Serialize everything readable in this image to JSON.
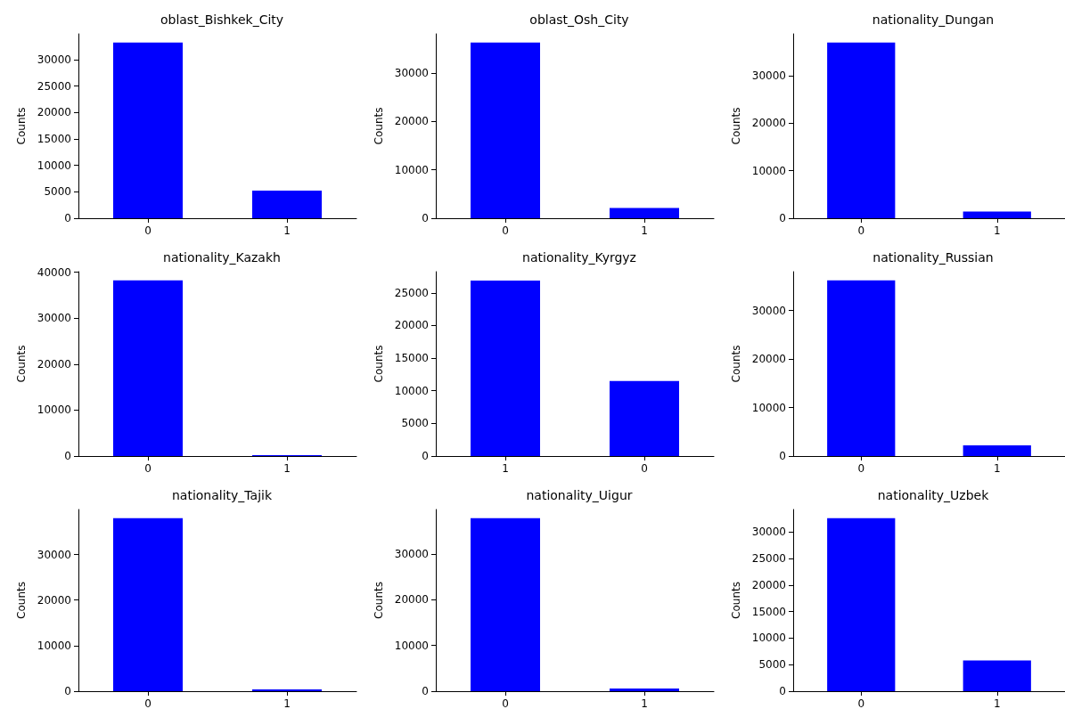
{
  "chart_data": [
    {
      "type": "bar",
      "title": "oblast_Bishkek_City",
      "ylabel": "Counts",
      "categories": [
        "0",
        "1"
      ],
      "values": [
        33200,
        5200
      ],
      "color": "#0000ff",
      "ylim": [
        0,
        34860
      ],
      "yticks": [
        0,
        5000,
        10000,
        15000,
        20000,
        25000,
        30000
      ],
      "grid": false
    },
    {
      "type": "bar",
      "title": "oblast_Osh_City",
      "ylabel": "Counts",
      "categories": [
        "0",
        "1"
      ],
      "values": [
        36300,
        2100
      ],
      "color": "#0000ff",
      "ylim": [
        0,
        38100
      ],
      "yticks": [
        0,
        10000,
        20000,
        30000
      ],
      "grid": false
    },
    {
      "type": "bar",
      "title": "nationality_Dungan",
      "ylabel": "Counts",
      "categories": [
        "0",
        "1"
      ],
      "values": [
        37000,
        1400
      ],
      "color": "#0000ff",
      "ylim": [
        0,
        38850
      ],
      "yticks": [
        0,
        10000,
        20000,
        30000
      ],
      "grid": false
    },
    {
      "type": "bar",
      "title": "nationality_Kazakh",
      "ylabel": "Counts",
      "categories": [
        "0",
        "1"
      ],
      "values": [
        38200,
        200
      ],
      "color": "#0000ff",
      "ylim": [
        0,
        40100
      ],
      "yticks": [
        0,
        10000,
        20000,
        30000,
        40000
      ],
      "grid": false
    },
    {
      "type": "bar",
      "title": "nationality_Kyrgyz",
      "ylabel": "Counts",
      "categories": [
        "1",
        "0"
      ],
      "values": [
        26900,
        11500
      ],
      "color": "#0000ff",
      "ylim": [
        0,
        28250
      ],
      "yticks": [
        0,
        5000,
        10000,
        15000,
        20000,
        25000
      ],
      "grid": false
    },
    {
      "type": "bar",
      "title": "nationality_Russian",
      "ylabel": "Counts",
      "categories": [
        "0",
        "1"
      ],
      "values": [
        36200,
        2200
      ],
      "color": "#0000ff",
      "ylim": [
        0,
        38000
      ],
      "yticks": [
        0,
        10000,
        20000,
        30000
      ],
      "grid": false
    },
    {
      "type": "bar",
      "title": "nationality_Tajik",
      "ylabel": "Counts",
      "categories": [
        "0",
        "1"
      ],
      "values": [
        38000,
        400
      ],
      "color": "#0000ff",
      "ylim": [
        0,
        39900
      ],
      "yticks": [
        0,
        10000,
        20000,
        30000
      ],
      "grid": false
    },
    {
      "type": "bar",
      "title": "nationality_Uigur",
      "ylabel": "Counts",
      "categories": [
        "0",
        "1"
      ],
      "values": [
        37800,
        600
      ],
      "color": "#0000ff",
      "ylim": [
        0,
        39700
      ],
      "yticks": [
        0,
        10000,
        20000,
        30000
      ],
      "grid": false
    },
    {
      "type": "bar",
      "title": "nationality_Uzbek",
      "ylabel": "Counts",
      "categories": [
        "0",
        "1"
      ],
      "values": [
        32600,
        5800
      ],
      "color": "#0000ff",
      "ylim": [
        0,
        34230
      ],
      "yticks": [
        0,
        5000,
        10000,
        15000,
        20000,
        25000,
        30000
      ],
      "grid": false
    }
  ]
}
